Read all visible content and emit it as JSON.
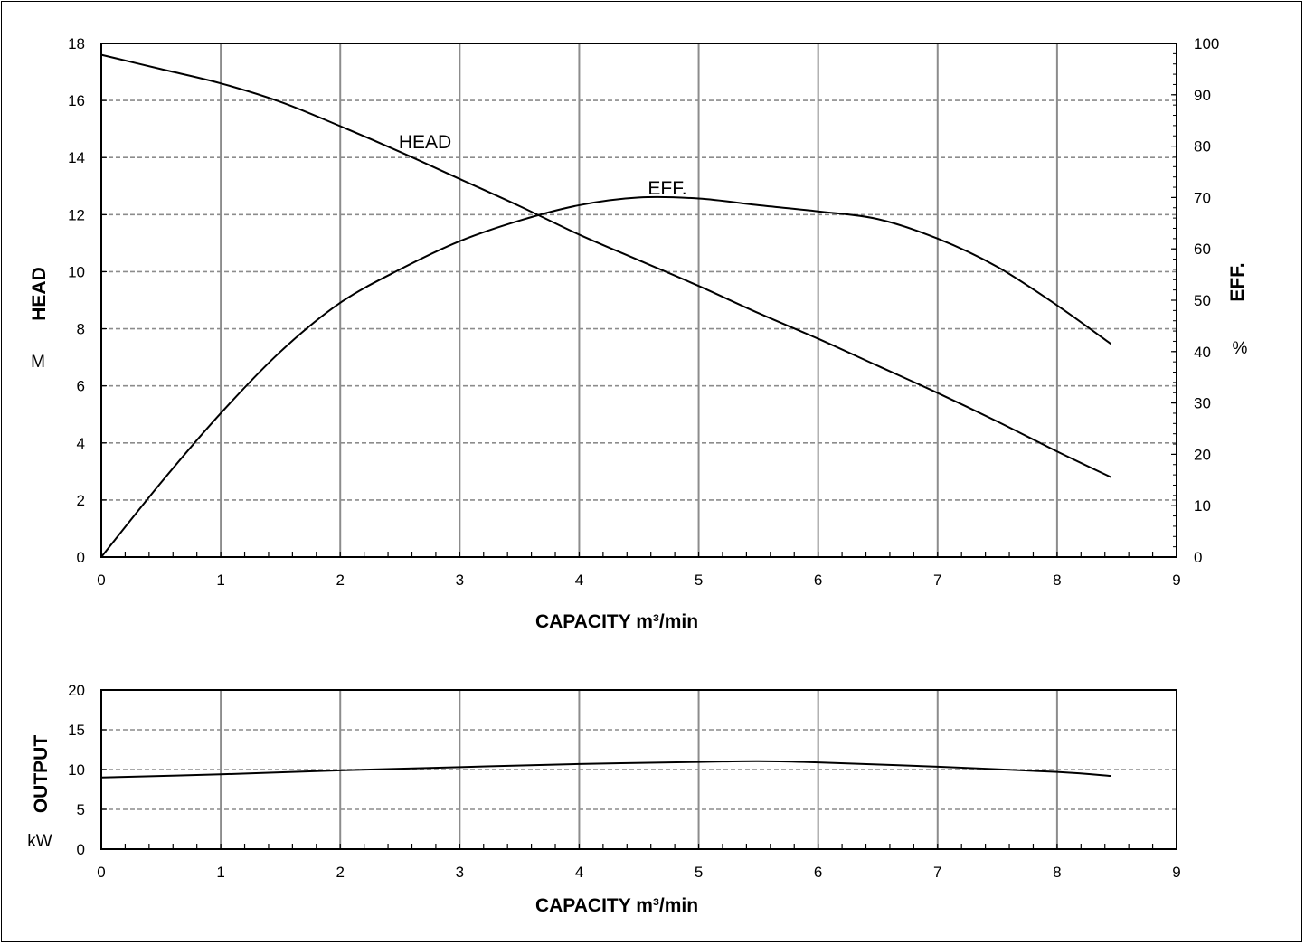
{
  "chart_data": [
    {
      "type": "line",
      "xlabel": "CAPACITY m³/min",
      "xlim": [
        0,
        9
      ],
      "x_ticks": [
        "0",
        "1",
        "2",
        "3",
        "4",
        "5",
        "6",
        "7",
        "8",
        "9"
      ],
      "ylabel": "HEAD",
      "ylabel_unit": "M",
      "ylim": [
        0,
        18
      ],
      "y_ticks": [
        "0",
        "2",
        "4",
        "6",
        "8",
        "10",
        "12",
        "14",
        "16",
        "18"
      ],
      "y2label": "EFF.",
      "y2label_unit": "%",
      "y2lim": [
        0,
        100
      ],
      "y2_ticks": [
        "0",
        "10",
        "20",
        "30",
        "40",
        "50",
        "60",
        "70",
        "80",
        "90",
        "100"
      ],
      "grid": true,
      "series": [
        {
          "name": "HEAD",
          "axis": "left",
          "x": [
            0,
            0.5,
            1,
            1.5,
            2,
            2.5,
            3,
            3.5,
            4,
            4.5,
            5,
            5.5,
            6,
            6.5,
            7,
            7.5,
            8,
            8.45
          ],
          "y": [
            17.6,
            17.1,
            16.6,
            15.95,
            15.1,
            14.2,
            13.25,
            12.3,
            11.3,
            10.4,
            9.5,
            8.55,
            7.65,
            6.7,
            5.75,
            4.75,
            3.7,
            2.8
          ]
        },
        {
          "name": "EFF.",
          "axis": "right",
          "x": [
            0,
            0.5,
            1,
            1.5,
            2,
            2.5,
            3,
            3.5,
            4,
            4.5,
            5,
            5.5,
            6,
            6.5,
            7,
            7.5,
            8,
            8.45
          ],
          "y": [
            0,
            14.5,
            28,
            40,
            49.5,
            56,
            61.5,
            65.5,
            68.5,
            70,
            69.8,
            68.5,
            67.3,
            65.8,
            62,
            56.5,
            49,
            41.5
          ]
        }
      ]
    },
    {
      "type": "line",
      "xlabel": "CAPACITY m³/min",
      "xlim": [
        0,
        9
      ],
      "x_ticks": [
        "0",
        "1",
        "2",
        "3",
        "4",
        "5",
        "6",
        "7",
        "8",
        "9"
      ],
      "ylabel": "OUTPUT",
      "ylabel_unit": "kW",
      "ylim": [
        0,
        20
      ],
      "y_ticks": [
        "0",
        "5",
        "10",
        "15",
        "20"
      ],
      "grid": true,
      "series": [
        {
          "name": "OUTPUT",
          "x": [
            0,
            1,
            2,
            3,
            4,
            5,
            5.5,
            6,
            7,
            8,
            8.45
          ],
          "y": [
            9.0,
            9.4,
            9.9,
            10.3,
            10.7,
            10.95,
            11.05,
            10.9,
            10.35,
            9.7,
            9.2
          ]
        }
      ]
    }
  ]
}
